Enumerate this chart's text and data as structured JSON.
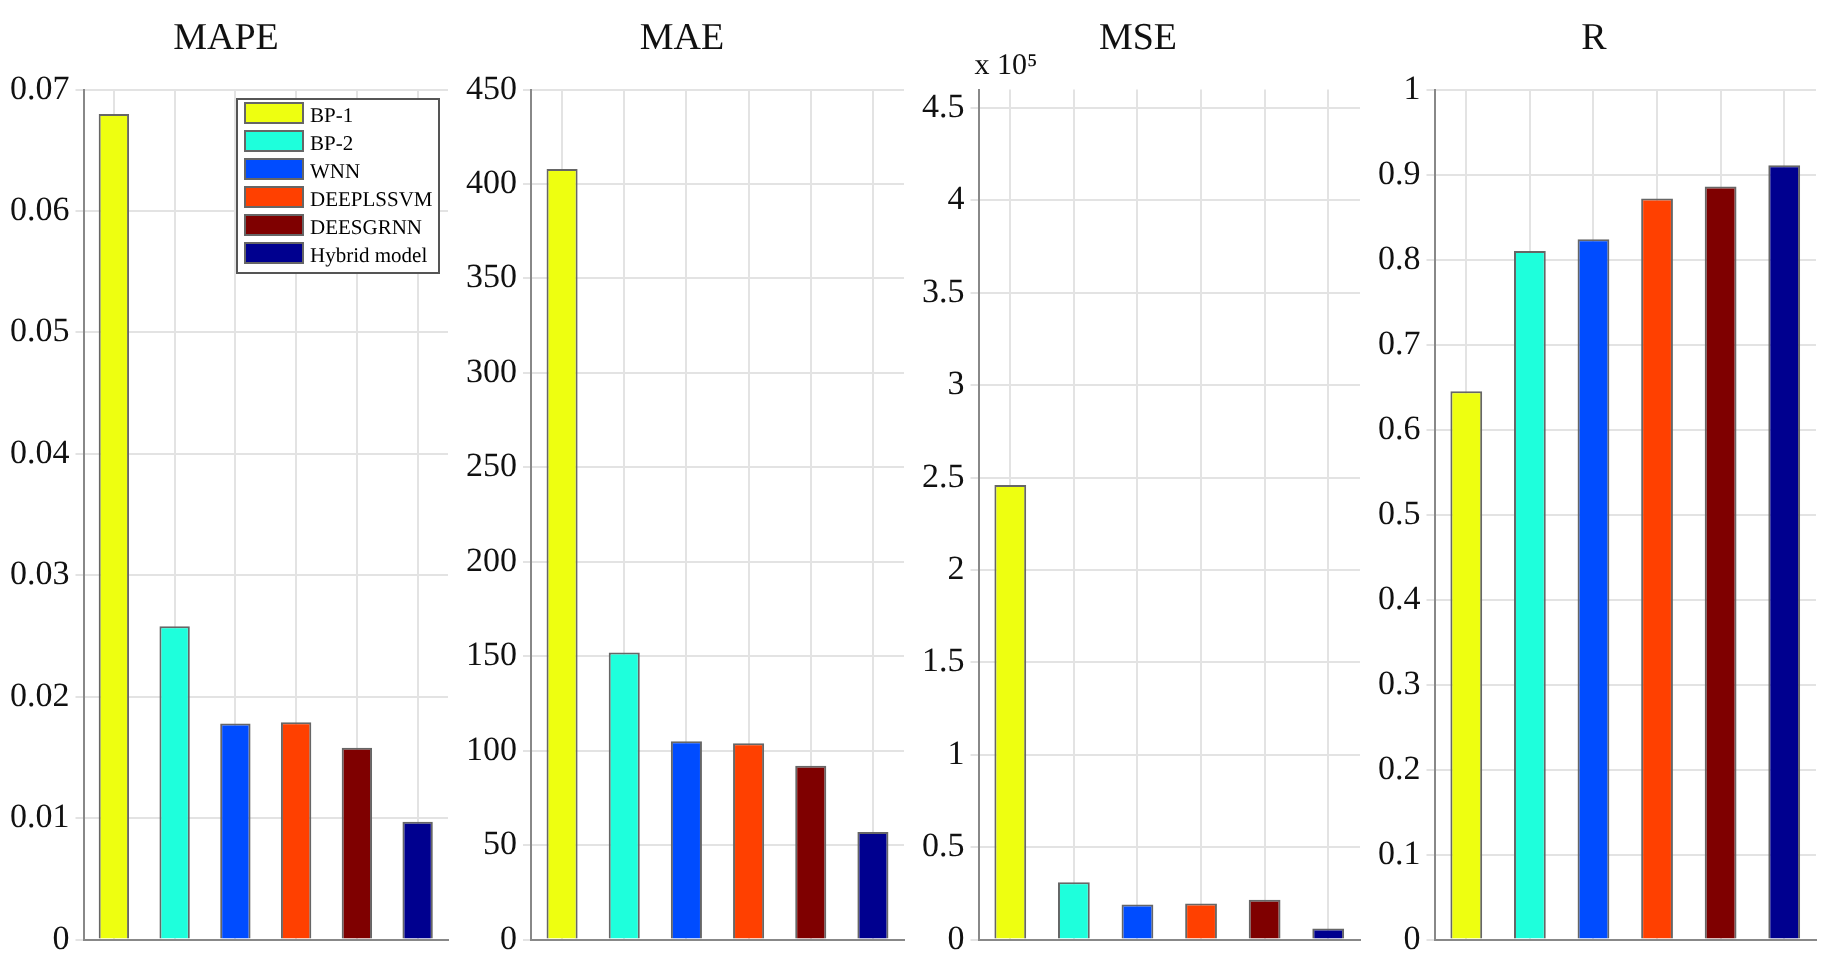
{
  "chart_data": [
    {
      "type": "bar",
      "title": "MAPE",
      "categories": [
        null,
        null,
        null,
        null,
        null,
        null
      ],
      "series": [
        {
          "name": "BP-1",
          "color": "#eeff10",
          "values": [
            0.068,
            null,
            null,
            null,
            null,
            null
          ]
        },
        {
          "name": "BP-2",
          "color": "#1effdc",
          "values": [
            null,
            0.0258,
            null,
            null,
            null,
            null
          ]
        },
        {
          "name": "WNN",
          "color": "#004cff",
          "values": [
            null,
            null,
            0.0178,
            null,
            null,
            null
          ]
        },
        {
          "name": "DEEPLSSVM",
          "color": "#ff4000",
          "values": [
            null,
            null,
            null,
            0.0179,
            null,
            null
          ]
        },
        {
          "name": "DEESGRNN",
          "color": "#7f0000",
          "values": [
            null,
            null,
            null,
            null,
            0.0158,
            null
          ]
        },
        {
          "name": "Hybrid model",
          "color": "#00008f",
          "values": [
            null,
            null,
            null,
            null,
            null,
            0.0097
          ]
        }
      ],
      "ylim": [
        0,
        0.07
      ],
      "yticks": [
        0,
        0.01,
        0.02,
        0.03,
        0.04,
        0.05,
        0.06,
        0.07
      ],
      "grid": true,
      "legend": "top right"
    },
    {
      "type": "bar",
      "title": "MAE",
      "categories": [
        null,
        null,
        null,
        null,
        null,
        null
      ],
      "values": [
        408,
        152,
        105,
        104,
        92,
        57
      ],
      "colors": [
        "#eeff10",
        "#1effdc",
        "#004cff",
        "#ff4000",
        "#7f0000",
        "#00008f"
      ],
      "ylim": [
        0,
        450
      ],
      "yticks": [
        0,
        50,
        100,
        150,
        200,
        250,
        300,
        350,
        400,
        450
      ],
      "grid": true
    },
    {
      "type": "bar",
      "title": "MSE",
      "annotations": [
        "x 10⁵"
      ],
      "categories": [
        null,
        null,
        null,
        null,
        null,
        null
      ],
      "values": [
        2.46,
        0.31,
        0.19,
        0.195,
        0.215,
        0.06
      ],
      "colors": [
        "#eeff10",
        "#1effdc",
        "#004cff",
        "#ff4000",
        "#7f0000",
        "#00008f"
      ],
      "ylim": [
        0,
        4.6
      ],
      "yticks": [
        0,
        0.5,
        1,
        1.5,
        2,
        2.5,
        3,
        3.5,
        4,
        4.5
      ],
      "grid": true
    },
    {
      "type": "bar",
      "title": "R",
      "categories": [
        null,
        null,
        null,
        null,
        null,
        null
      ],
      "values": [
        0.645,
        0.81,
        0.824,
        0.872,
        0.886,
        0.911
      ],
      "colors": [
        "#eeff10",
        "#1effdc",
        "#004cff",
        "#ff4000",
        "#7f0000",
        "#00008f"
      ],
      "ylim": [
        0,
        1
      ],
      "yticks": [
        0,
        0.1,
        0.2,
        0.3,
        0.4,
        0.5,
        0.6,
        0.7,
        0.8,
        0.9,
        1
      ],
      "grid": true
    }
  ]
}
